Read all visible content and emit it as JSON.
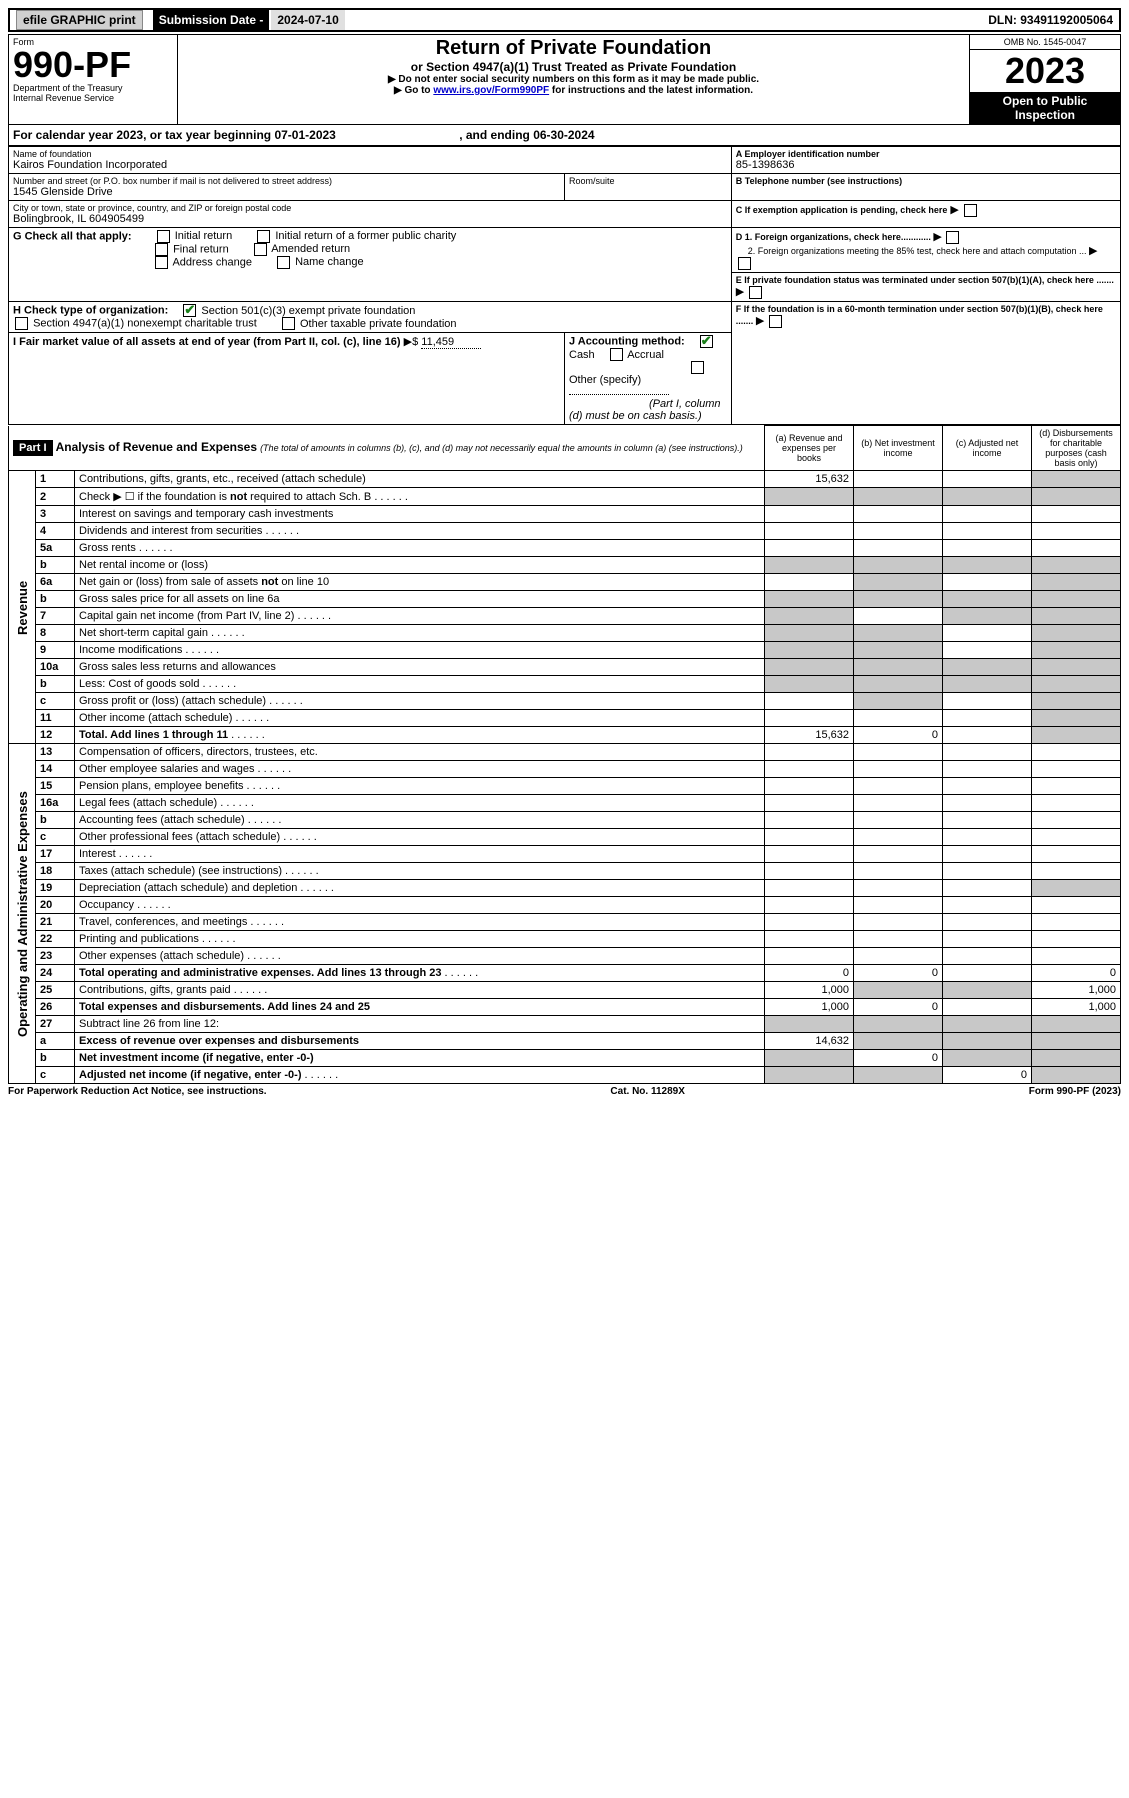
{
  "topbar": {
    "efile": "efile GRAPHIC print",
    "subdate_label": "Submission Date - ",
    "subdate_val": "2024-07-10",
    "dln": "DLN: 93491192005064"
  },
  "header": {
    "form_word": "Form",
    "form_no": "990-PF",
    "dept1": "Department of the Treasury",
    "dept2": "Internal Revenue Service",
    "title": "Return of Private Foundation",
    "subtitle": "or Section 4947(a)(1) Trust Treated as Private Foundation",
    "instr1": "▶ Do not enter social security numbers on this form as it may be made public.",
    "instr2": "▶ Go to ",
    "instr2_link": "www.irs.gov/Form990PF",
    "instr2_tail": " for instructions and the latest information.",
    "omb": "OMB No. 1545-0047",
    "year": "2023",
    "open": "Open to Public Inspection"
  },
  "calyear": {
    "prefix": "For calendar year 2023, or tax year beginning ",
    "begin": "07-01-2023",
    "mid": " , and ending ",
    "end": "06-30-2024"
  },
  "entity": {
    "name_label": "Name of foundation",
    "name": "Kairos Foundation Incorporated",
    "addr_label": "Number and street (or P.O. box number if mail is not delivered to street address)",
    "room_label": "Room/suite",
    "street": "1545 Glenside Drive",
    "city_label": "City or town, state or province, country, and ZIP or foreign postal code",
    "city": "Bolingbrook, IL  604905499",
    "a_label": "A Employer identification number",
    "ein": "85-1398636",
    "b_label": "B Telephone number (see instructions)",
    "c_label": "C If exemption application is pending, check here",
    "d1_label": "D 1. Foreign organizations, check here............",
    "d2_label": "2. Foreign organizations meeting the 85% test, check here and attach computation ...",
    "e_label": "E  If private foundation status was terminated under section 507(b)(1)(A), check here .......",
    "f_label": "F  If the foundation is in a 60-month termination under section 507(b)(1)(B), check here .......",
    "g_label": "G Check all that apply:",
    "g_opts": [
      "Initial return",
      "Initial return of a former public charity",
      "Final return",
      "Amended return",
      "Address change",
      "Name change"
    ],
    "h_label": "H Check type of organization:",
    "h1": "Section 501(c)(3) exempt private foundation",
    "h2": "Section 4947(a)(1) nonexempt charitable trust",
    "h3": "Other taxable private foundation",
    "i_label": "I Fair market value of all assets at end of year (from Part II, col. (c), line 16)",
    "i_val": "11,459",
    "j_label": "J Accounting method:",
    "j_cash": "Cash",
    "j_accr": "Accrual",
    "j_other": "Other (specify)",
    "j_note": "(Part I, column (d) must be on cash basis.)"
  },
  "part1": {
    "label": "Part I",
    "title": "Analysis of Revenue and Expenses",
    "title_note": " (The total of amounts in columns (b), (c), and (d) may not necessarily equal the amounts in column (a) (see instructions).)",
    "col_a": "(a)   Revenue and expenses per books",
    "col_b": "(b)   Net investment income",
    "col_c": "(c)   Adjusted net income",
    "col_d": "(d)   Disbursements for charitable purposes (cash basis only)",
    "revenue_label": "Revenue",
    "opex_label": "Operating and Administrative Expenses"
  },
  "rows": [
    {
      "n": "1",
      "d": "Contributions, gifts, grants, etc., received (attach schedule)",
      "a": "15,632",
      "shade": [
        "d"
      ]
    },
    {
      "n": "2",
      "d": "Check ▶ ☐ if the foundation is not required to attach Sch. B",
      "dots": true,
      "shade": [
        "a",
        "b",
        "c",
        "d"
      ]
    },
    {
      "n": "3",
      "d": "Interest on savings and temporary cash investments"
    },
    {
      "n": "4",
      "d": "Dividends and interest from securities",
      "dots": true
    },
    {
      "n": "5a",
      "d": "Gross rents",
      "dots": true
    },
    {
      "n": "b",
      "d": "Net rental income or (loss)",
      "shade": [
        "a",
        "b",
        "c",
        "d"
      ]
    },
    {
      "n": "6a",
      "d": "Net gain or (loss) from sale of assets not on line 10",
      "shade": [
        "b",
        "d"
      ]
    },
    {
      "n": "b",
      "d": "Gross sales price for all assets on line 6a",
      "shade": [
        "a",
        "b",
        "c",
        "d"
      ]
    },
    {
      "n": "7",
      "d": "Capital gain net income (from Part IV, line 2)",
      "dots": true,
      "shade": [
        "a",
        "c",
        "d"
      ]
    },
    {
      "n": "8",
      "d": "Net short-term capital gain",
      "dots": true,
      "shade": [
        "a",
        "b",
        "d"
      ]
    },
    {
      "n": "9",
      "d": "Income modifications",
      "dots": true,
      "shade": [
        "a",
        "b",
        "d"
      ]
    },
    {
      "n": "10a",
      "d": "Gross sales less returns and allowances",
      "shade": [
        "a",
        "b",
        "c",
        "d"
      ]
    },
    {
      "n": "b",
      "d": "Less: Cost of goods sold",
      "dots": true,
      "shade": [
        "a",
        "b",
        "c",
        "d"
      ]
    },
    {
      "n": "c",
      "d": "Gross profit or (loss) (attach schedule)",
      "dots": true,
      "shade": [
        "b",
        "d"
      ]
    },
    {
      "n": "11",
      "d": "Other income (attach schedule)",
      "dots": true,
      "shade": [
        "d"
      ]
    },
    {
      "n": "12",
      "d": "Total. Add lines 1 through 11",
      "dots": true,
      "bold": true,
      "a": "15,632",
      "b": "0",
      "shade": [
        "d"
      ]
    }
  ],
  "oprows": [
    {
      "n": "13",
      "d": "Compensation of officers, directors, trustees, etc."
    },
    {
      "n": "14",
      "d": "Other employee salaries and wages",
      "dots": true
    },
    {
      "n": "15",
      "d": "Pension plans, employee benefits",
      "dots": true
    },
    {
      "n": "16a",
      "d": "Legal fees (attach schedule)",
      "dots": true
    },
    {
      "n": "b",
      "d": "Accounting fees (attach schedule)",
      "dots": true
    },
    {
      "n": "c",
      "d": "Other professional fees (attach schedule)",
      "dots": true
    },
    {
      "n": "17",
      "d": "Interest",
      "dots": true
    },
    {
      "n": "18",
      "d": "Taxes (attach schedule) (see instructions)",
      "dots": true
    },
    {
      "n": "19",
      "d": "Depreciation (attach schedule) and depletion",
      "dots": true,
      "shade": [
        "d"
      ]
    },
    {
      "n": "20",
      "d": "Occupancy",
      "dots": true
    },
    {
      "n": "21",
      "d": "Travel, conferences, and meetings",
      "dots": true
    },
    {
      "n": "22",
      "d": "Printing and publications",
      "dots": true
    },
    {
      "n": "23",
      "d": "Other expenses (attach schedule)",
      "dots": true
    },
    {
      "n": "24",
      "d": "Total operating and administrative expenses. Add lines 13 through 23",
      "dots": true,
      "bold": true,
      "a": "0",
      "b": "0",
      "dcol": "0"
    },
    {
      "n": "25",
      "d": "Contributions, gifts, grants paid",
      "dots": true,
      "a": "1,000",
      "dcol": "1,000",
      "shade": [
        "b",
        "c"
      ]
    },
    {
      "n": "26",
      "d": "Total expenses and disbursements. Add lines 24 and 25",
      "bold": true,
      "a": "1,000",
      "b": "0",
      "dcol": "1,000"
    },
    {
      "n": "27",
      "d": "Subtract line 26 from line 12:",
      "shade": [
        "a",
        "b",
        "c",
        "d"
      ]
    },
    {
      "n": "a",
      "d": "Excess of revenue over expenses and disbursements",
      "bold": true,
      "a": "14,632",
      "shade": [
        "b",
        "c",
        "d"
      ]
    },
    {
      "n": "b",
      "d": "Net investment income (if negative, enter -0-)",
      "bold": true,
      "b": "0",
      "shade": [
        "a",
        "c",
        "d"
      ]
    },
    {
      "n": "c",
      "d": "Adjusted net income (if negative, enter -0-)",
      "bold": true,
      "dots": true,
      "c": "0",
      "shade": [
        "a",
        "b",
        "d"
      ]
    }
  ],
  "footer": {
    "left": "For Paperwork Reduction Act Notice, see instructions.",
    "mid": "Cat. No. 11289X",
    "right": "Form 990-PF (2023)"
  }
}
